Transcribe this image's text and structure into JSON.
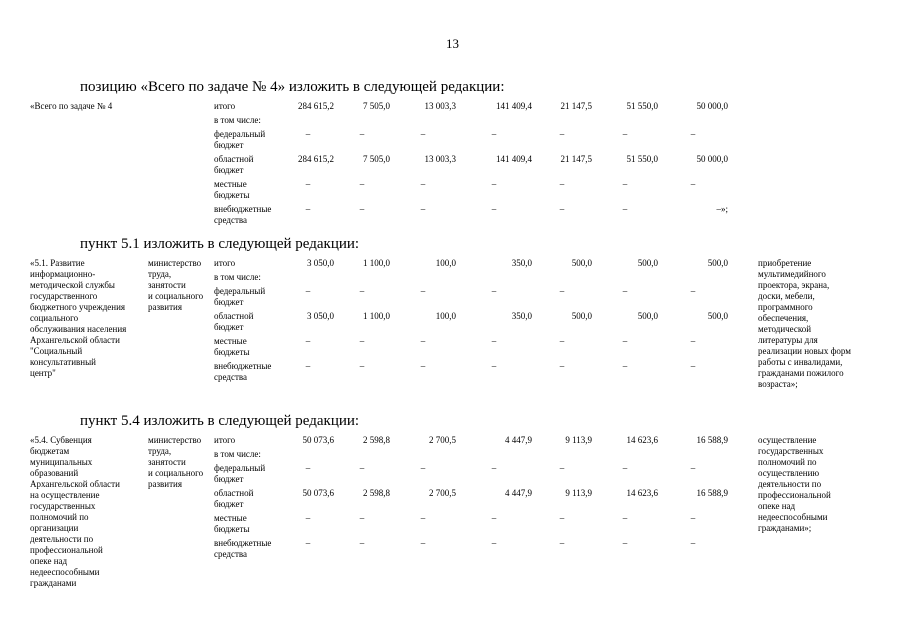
{
  "page": {
    "number": "13"
  },
  "sections": [
    {
      "heading": "позицию «Всего по задаче № 4» изложить в следующей редакции:",
      "table": {
        "name": "«Всего по задаче № 4",
        "executor": "",
        "rows": [
          {
            "label": "итого",
            "values": [
              "284 615,2",
              "7 505,0",
              "13 003,3",
              "141 409,4",
              "21 147,5",
              "51 550,0",
              "50 000,0"
            ]
          },
          {
            "label": "в том числе:",
            "values": []
          },
          {
            "label": "федеральный\nбюджет",
            "values": [
              "–",
              "–",
              "–",
              "–",
              "–",
              "–",
              "–"
            ]
          },
          {
            "label": "областной\nбюджет",
            "values": [
              "284 615,2",
              "7 505,0",
              "13 003,3",
              "141 409,4",
              "21 147,5",
              "51 550,0",
              "50 000,0"
            ]
          },
          {
            "label": "местные\nбюджеты",
            "values": [
              "–",
              "–",
              "–",
              "–",
              "–",
              "–",
              "–"
            ]
          },
          {
            "label": "внебюджетные\nсредства",
            "values": [
              "–",
              "–",
              "–",
              "–",
              "–",
              "–",
              "–»;"
            ]
          }
        ],
        "note": ""
      }
    },
    {
      "heading": "пункт 5.1 изложить в следующей редакции:",
      "table": {
        "name": "«5.1. Развитие\nинформационно-\nметодической службы\nгосударственного\nбюджетного учреждения\nсоциального\nобслуживания населения\nАрхангельской области\n\"Социальный\nконсультативный\nцентр\"",
        "executor": "министерство\nтруда,\nзанятости\nи социального\nразвития",
        "rows": [
          {
            "label": "итого",
            "values": [
              "3 050,0",
              "1 100,0",
              "100,0",
              "350,0",
              "500,0",
              "500,0",
              "500,0"
            ]
          },
          {
            "label": "в том числе:",
            "values": []
          },
          {
            "label": "федеральный\nбюджет",
            "values": [
              "–",
              "–",
              "–",
              "–",
              "–",
              "–",
              "–"
            ]
          },
          {
            "label": "областной\nбюджет",
            "values": [
              "3 050,0",
              "1 100,0",
              "100,0",
              "350,0",
              "500,0",
              "500,0",
              "500,0"
            ]
          },
          {
            "label": "местные\nбюджеты",
            "values": [
              "–",
              "–",
              "–",
              "–",
              "–",
              "–",
              "–"
            ]
          },
          {
            "label": "внебюджетные\nсредства",
            "values": [
              "–",
              "–",
              "–",
              "–",
              "–",
              "–",
              "–"
            ]
          }
        ],
        "note": "приобретение\nмультимедийного\nпроектора, экрана,\nдоски, мебели,\nпрограммного\nобеспечения,\nметодической\nлитературы для\nреализации новых форм\nработы с инвалидами,\nгражданами пожилого\nвозраста»;"
      }
    },
    {
      "heading": "пункт 5.4 изложить в следующей редакции:",
      "table": {
        "name": "«5.4. Субвенция\nбюджетам\nмуниципальных\nобразований\nАрхангельской области\nна осуществление\nгосударственных\nполномочий по\nорганизации\nдеятельности по\nпрофессиональной\nопеке над\nнедееспособными\nгражданами",
        "executor": "министерство\nтруда,\nзанятости\nи социального\nразвития",
        "rows": [
          {
            "label": "итого",
            "values": [
              "50 073,6",
              "2 598,8",
              "2 700,5",
              "4 447,9",
              "9 113,9",
              "14 623,6",
              "16 588,9"
            ]
          },
          {
            "label": "в том числе:",
            "values": []
          },
          {
            "label": "федеральный\nбюджет",
            "values": [
              "–",
              "–",
              "–",
              "–",
              "–",
              "–",
              "–"
            ]
          },
          {
            "label": "областной\nбюджет",
            "values": [
              "50 073,6",
              "2 598,8",
              "2 700,5",
              "4 447,9",
              "9 113,9",
              "14 623,6",
              "16 588,9"
            ]
          },
          {
            "label": "местные\nбюджеты",
            "values": [
              "–",
              "–",
              "–",
              "–",
              "–",
              "–",
              "–"
            ]
          },
          {
            "label": "внебюджетные\nсредства",
            "values": [
              "–",
              "–",
              "–",
              "–",
              "–",
              "–",
              "–"
            ]
          }
        ],
        "note": "осуществление\nгосударственных\nполномочий по\nосуществлению\nдеятельности по\nпрофессиональной\nопеке над\nнедееспособными\nгражданами»;"
      }
    }
  ]
}
